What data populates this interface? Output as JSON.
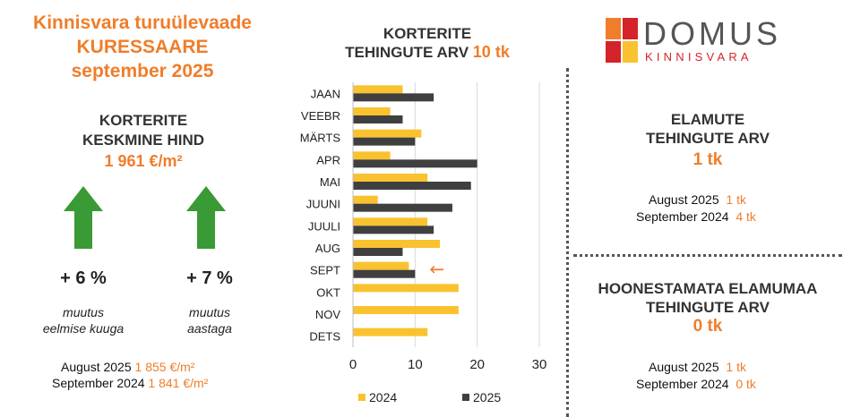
{
  "header": {
    "title_line1": "Kinnisvara turuülevaade",
    "title_line2": "KURESSAARE",
    "title_line3": "september 2025"
  },
  "price": {
    "label_line1": "KORTERITE",
    "label_line2": "KESKMINE HIND",
    "value": "1 961 €/m²",
    "change_month": "+ 6 %",
    "change_year": "+ 7 %",
    "change_month_caption_line1": "muutus",
    "change_month_caption_line2": "eelmise kuuga",
    "change_year_caption_line1": "muutus",
    "change_year_caption_line2": "aastaga",
    "compare": [
      {
        "period": "August 2025",
        "value": "1 855 €/m²"
      },
      {
        "period": "September 2024",
        "value": "1 841 €/m²"
      }
    ]
  },
  "apartments": {
    "title_line1": "KORTERITE",
    "title_line2": "TEHINGUTE ARV",
    "value": "10 tk"
  },
  "logo": {
    "word": "DOMUS",
    "sub": "KINNISVARA"
  },
  "houses": {
    "title_line1": "ELAMUTE",
    "title_line2": "TEHINGUTE ARV",
    "value": "1 tk",
    "compare": [
      {
        "period": "August 2025",
        "value": "1 tk"
      },
      {
        "period": "September 2024",
        "value": "4 tk"
      }
    ]
  },
  "land": {
    "title_line1": "HOONESTAMATA ELAMUMAA",
    "title_line2": "TEHINGUTE ARV",
    "value": "0 tk",
    "compare": [
      {
        "period": "August 2025",
        "value": "1 tk"
      },
      {
        "period": "September 2024",
        "value": "0 tk"
      }
    ]
  },
  "colors": {
    "accent": "#f07d2a",
    "series_2024": "#f9c22e",
    "series_2025": "#3f3f3f",
    "arrow": "#3a9a35",
    "logo_red": "#d4232a",
    "logo_orange": "#f07d2a",
    "logo_yellow": "#f9c22e"
  },
  "chart_data": {
    "type": "bar",
    "orientation": "horizontal",
    "categories": [
      "JAAN",
      "VEEBR",
      "MÄRTS",
      "APR",
      "MAI",
      "JUUNI",
      "JUULI",
      "AUG",
      "SEPT",
      "OKT",
      "NOV",
      "DETS"
    ],
    "series": [
      {
        "name": "2024",
        "values": [
          8,
          6,
          11,
          6,
          12,
          4,
          12,
          14,
          9,
          17,
          17,
          12
        ]
      },
      {
        "name": "2025",
        "values": [
          13,
          8,
          10,
          20,
          19,
          16,
          13,
          8,
          10,
          null,
          null,
          null
        ]
      }
    ],
    "xlim": [
      0,
      30
    ],
    "xticks": [
      0,
      10,
      20,
      30
    ],
    "legend": "bottom",
    "current_marker_category": "SEPT",
    "current_marker_symbol": "←"
  }
}
